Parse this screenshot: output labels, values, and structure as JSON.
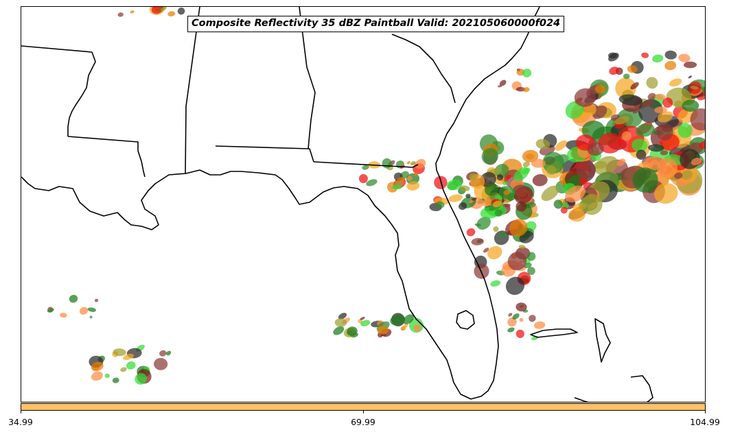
{
  "title": "Composite Reflectivity 35 dBZ Paintball Valid: 202105060000f024",
  "map": {
    "region": "Southeastern United States / Florida",
    "member_colors": [
      "#ee1111",
      "#e87d00",
      "#f5a623",
      "#ff8c42",
      "#a0a030",
      "#7a1f1f",
      "#8b3a3a",
      "#2a2a2a",
      "#1a7a1a",
      "#2e8b2e",
      "#33dd33"
    ],
    "outline_color": "#000000"
  },
  "colorbar": {
    "fill_color": "#ffc266",
    "ticks": [
      "34.99",
      "69.99",
      "104.99"
    ]
  }
}
